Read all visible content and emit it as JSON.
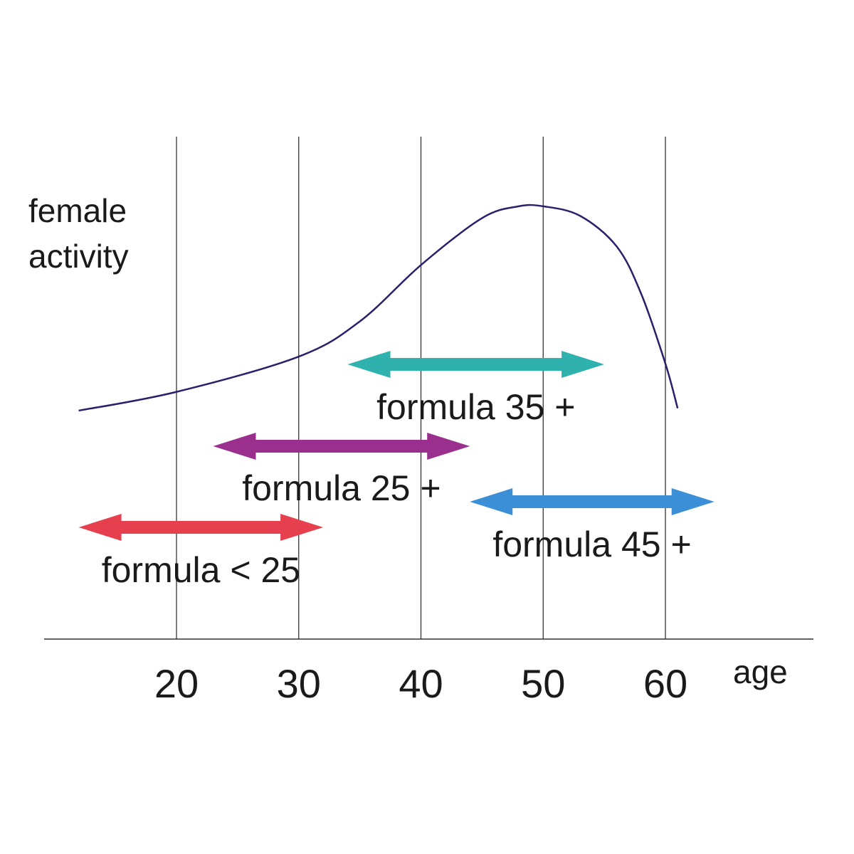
{
  "chart_data": {
    "type": "line",
    "ylabel": [
      "female",
      "activity"
    ],
    "xlabel": "age",
    "xticks": [
      20,
      30,
      40,
      50,
      60
    ],
    "xlim": [
      9,
      70
    ],
    "ylim": [
      0,
      1
    ],
    "grid": "vertical",
    "curve": {
      "x": [
        12,
        20,
        30,
        35,
        40,
        45,
        48,
        50,
        53,
        56,
        58,
        60,
        61
      ],
      "y": [
        0.1,
        0.18,
        0.33,
        0.48,
        0.72,
        0.92,
        0.97,
        0.97,
        0.93,
        0.8,
        0.6,
        0.3,
        0.11
      ]
    },
    "ranges": [
      {
        "label": "formula < 25",
        "start": 12,
        "end": 32,
        "color": "#e6404f"
      },
      {
        "label": "formula 25 +",
        "start": 23,
        "end": 44,
        "color": "#9a2f8e"
      },
      {
        "label": "formula 35 +",
        "start": 34,
        "end": 55,
        "color": "#2fb1ad"
      },
      {
        "label": "formula 45 +",
        "start": 44,
        "end": 64,
        "color": "#3a8fd6"
      }
    ],
    "colors": {
      "curve": "#2a1f6b",
      "grid": "#333333",
      "axis": "#333333"
    }
  }
}
